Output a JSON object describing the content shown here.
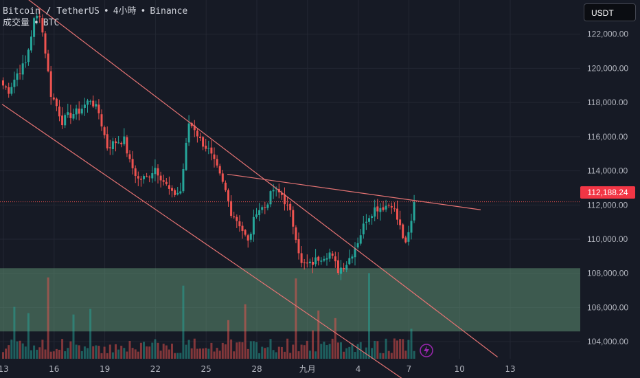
{
  "legend": {
    "line1_pair": "Bitcoin / TetherUS",
    "line1_interval": "4小時",
    "line1_exchange": "Binance",
    "line2_volume": "成交量",
    "line2_asset": "BTC"
  },
  "unit_button": {
    "label": "USDT"
  },
  "last_price": {
    "label": "112,188.24",
    "value": 112188.24
  },
  "colors": {
    "background": "#161a25",
    "up": "#26a69a",
    "down": "#ef5350",
    "trendline": "#e57373",
    "zone": "#5f8f73",
    "grid": "#232733",
    "axis_text": "#b2b5be",
    "price_badge": "#f23645"
  },
  "chart_data": {
    "type": "candlestick",
    "y_axis": {
      "side": "right",
      "ticks": [
        "122,000.00",
        "120,000.00",
        "118,000.00",
        "116,000.00",
        "114,000.00",
        "112,000.00",
        "110,000.00",
        "108,000.00",
        "106,000.00",
        "104,000.00"
      ],
      "tick_values": [
        122000,
        120000,
        118000,
        116000,
        114000,
        112000,
        110000,
        108000,
        106000,
        104000
      ],
      "ylim": [
        103000,
        124000
      ]
    },
    "x_axis": {
      "ticks": [
        "13",
        "16",
        "19",
        "22",
        "25",
        "28",
        "九月",
        "4",
        "7",
        "10",
        "13"
      ],
      "tick_bars": [
        0,
        18,
        36,
        54,
        72,
        90,
        108,
        126,
        144,
        162,
        180
      ]
    },
    "bar_count": 147,
    "anchors_close": [
      [
        0,
        119000
      ],
      [
        2,
        118700
      ],
      [
        5,
        119700
      ],
      [
        8,
        120300
      ],
      [
        11,
        122800
      ],
      [
        13,
        123200
      ],
      [
        15,
        121000
      ],
      [
        17,
        118500
      ],
      [
        19,
        117800
      ],
      [
        21,
        116900
      ],
      [
        23,
        117200
      ],
      [
        27,
        117500
      ],
      [
        31,
        118200
      ],
      [
        34,
        117400
      ],
      [
        37,
        115400
      ],
      [
        40,
        115700
      ],
      [
        43,
        115800
      ],
      [
        45,
        114500
      ],
      [
        48,
        113500
      ],
      [
        51,
        113600
      ],
      [
        54,
        114200
      ],
      [
        57,
        113400
      ],
      [
        60,
        112600
      ],
      [
        63,
        112800
      ],
      [
        66,
        116800
      ],
      [
        68,
        116500
      ],
      [
        70,
        115800
      ],
      [
        73,
        115200
      ],
      [
        76,
        114100
      ],
      [
        79,
        112800
      ],
      [
        81,
        111600
      ],
      [
        84,
        110900
      ],
      [
        87,
        109800
      ],
      [
        90,
        111700
      ],
      [
        93,
        111900
      ],
      [
        96,
        112900
      ],
      [
        99,
        112600
      ],
      [
        102,
        111500
      ],
      [
        104,
        110200
      ],
      [
        106,
        108500
      ],
      [
        109,
        108500
      ],
      [
        112,
        108900
      ],
      [
        116,
        109200
      ],
      [
        119,
        108200
      ],
      [
        122,
        108600
      ],
      [
        124,
        109200
      ],
      [
        126,
        109900
      ],
      [
        129,
        111200
      ],
      [
        132,
        111800
      ],
      [
        135,
        111900
      ],
      [
        138,
        112100
      ],
      [
        141,
        110700
      ],
      [
        143,
        109600
      ],
      [
        145,
        111000
      ],
      [
        146,
        112190
      ]
    ],
    "zone": {
      "type": "rectangle",
      "price_low": 104600,
      "price_high": 108300,
      "x_start_bar": 0,
      "x_end": "axis"
    },
    "trendlines": [
      {
        "from": [
          0,
          125200
        ],
        "to": [
          176,
          103100
        ]
      },
      {
        "from": [
          0,
          117900
        ],
        "to": [
          146,
          101400
        ]
      },
      {
        "from": [
          80,
          113800
        ],
        "to": [
          170,
          111720
        ]
      }
    ],
    "volume": {
      "panel": "bottom",
      "max_spikes_bars": [
        16,
        64,
        104,
        130
      ]
    }
  }
}
